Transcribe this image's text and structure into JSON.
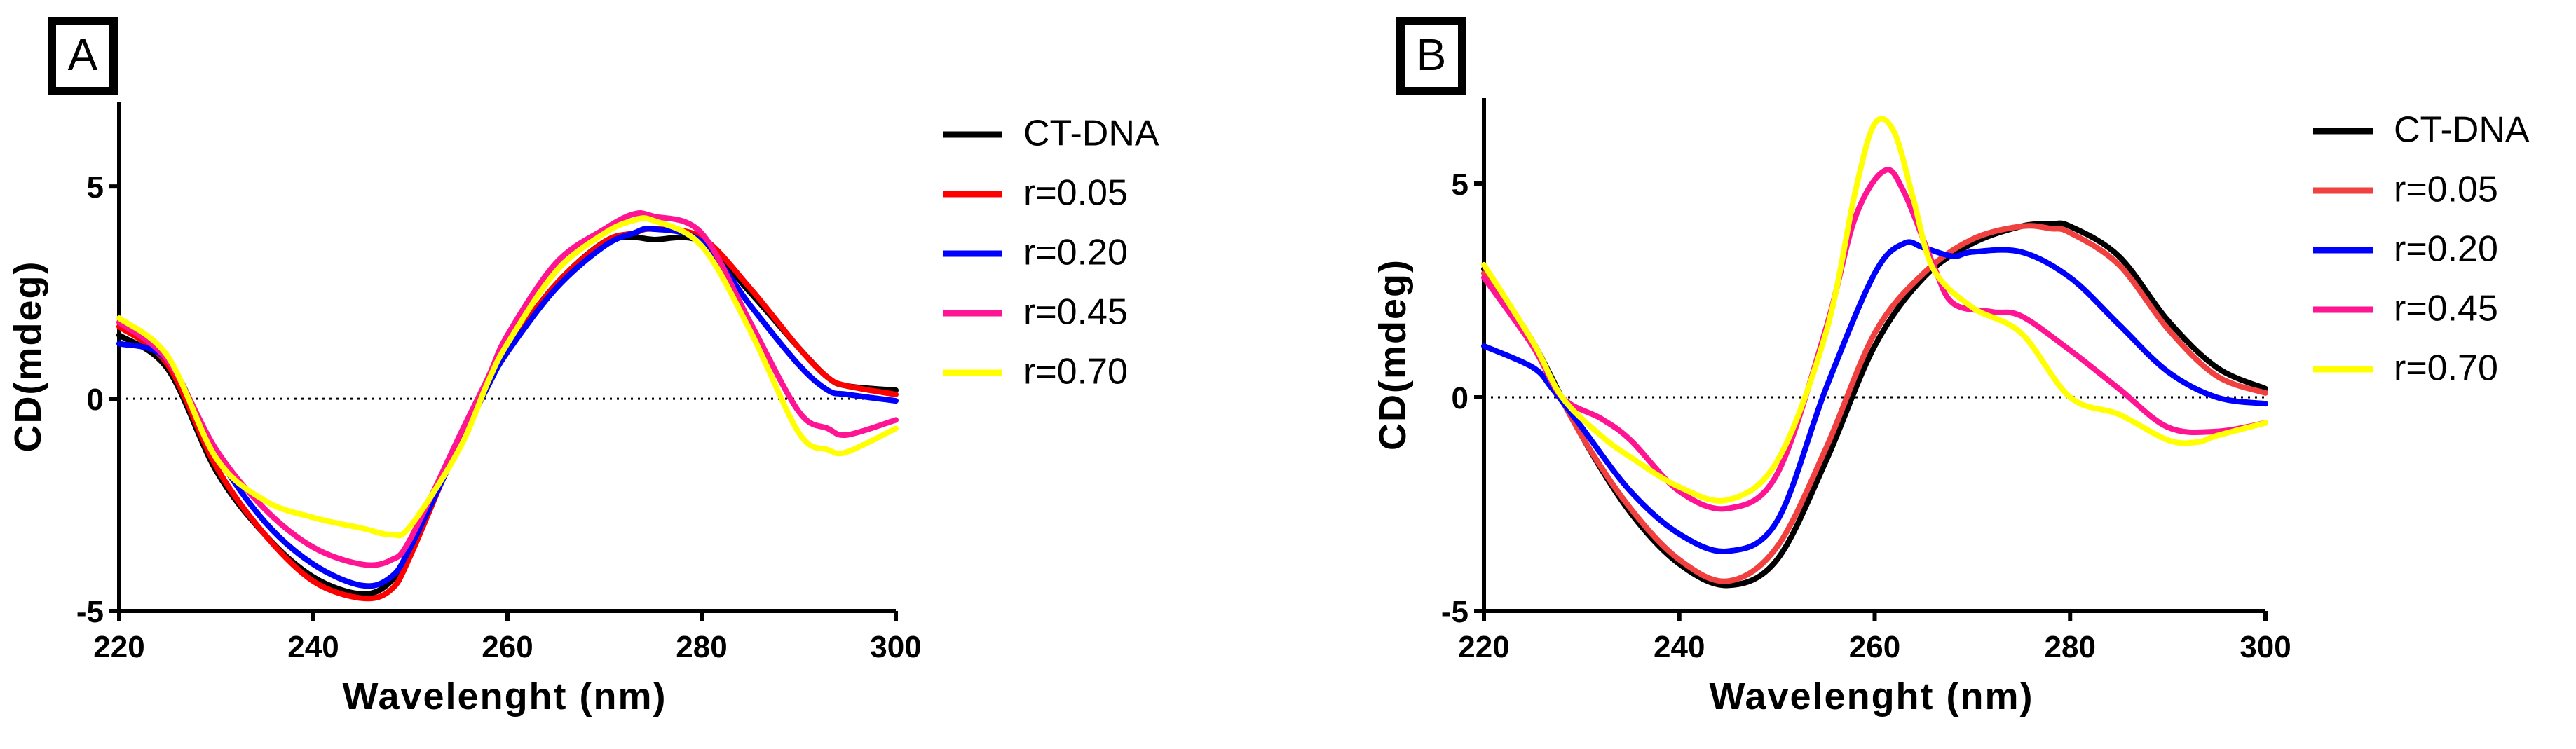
{
  "chart_data": [
    {
      "type": "line",
      "panel_label": "A",
      "xlabel": "Wavelenght (nm)",
      "ylabel": "CD(mdeg)",
      "xlim": [
        220,
        300
      ],
      "ylim": [
        -5,
        7
      ],
      "xticks": [
        "220",
        "240",
        "260",
        "280",
        "300"
      ],
      "yticks": [
        "-5",
        "0",
        "5"
      ],
      "reference_line": 0,
      "series": [
        {
          "name": "CT-DNA",
          "color": "#000000",
          "x": [
            220,
            225,
            230,
            235,
            240,
            245,
            248,
            250,
            255,
            258,
            260,
            265,
            270,
            273,
            275,
            280,
            285,
            290,
            293,
            295,
            300
          ],
          "y": [
            1.5,
            0.7,
            -1.7,
            -3.2,
            -4.2,
            -4.6,
            -4.3,
            -3.5,
            -1.0,
            0.4,
            1.2,
            2.7,
            3.7,
            3.8,
            3.75,
            3.7,
            2.5,
            1.2,
            0.5,
            0.3,
            0.2
          ]
        },
        {
          "name": "r=0.05",
          "color": "#ff0000",
          "x": [
            220,
            225,
            230,
            235,
            240,
            245,
            248,
            250,
            255,
            258,
            260,
            265,
            270,
            273,
            275,
            280,
            285,
            290,
            293,
            295,
            300
          ],
          "y": [
            1.7,
            0.8,
            -1.6,
            -3.2,
            -4.3,
            -4.7,
            -4.5,
            -3.7,
            -1.0,
            0.4,
            1.2,
            2.7,
            3.7,
            3.9,
            4.0,
            3.8,
            2.6,
            1.2,
            0.5,
            0.3,
            0.1
          ]
        },
        {
          "name": "r=0.20",
          "color": "#0000ff",
          "x": [
            220,
            225,
            230,
            235,
            240,
            245,
            248,
            250,
            255,
            258,
            260,
            265,
            270,
            273,
            275,
            280,
            285,
            290,
            293,
            295,
            300
          ],
          "y": [
            1.3,
            0.9,
            -1.3,
            -2.9,
            -3.9,
            -4.4,
            -4.2,
            -3.5,
            -1.1,
            0.3,
            1.1,
            2.6,
            3.6,
            3.9,
            4.0,
            3.7,
            2.2,
            0.8,
            0.2,
            0.1,
            -0.05
          ]
        },
        {
          "name": "r=0.45",
          "color": "#ff1493",
          "x": [
            220,
            225,
            230,
            235,
            240,
            245,
            248,
            250,
            255,
            258,
            260,
            265,
            270,
            273,
            275,
            280,
            285,
            290,
            293,
            295,
            300
          ],
          "y": [
            1.8,
            0.9,
            -1.2,
            -2.6,
            -3.5,
            -3.9,
            -3.8,
            -3.3,
            -0.9,
            0.5,
            1.5,
            3.2,
            4.0,
            4.35,
            4.3,
            3.9,
            1.8,
            -0.3,
            -0.7,
            -0.85,
            -0.5
          ]
        },
        {
          "name": "r=0.70",
          "color": "#ffff00",
          "x": [
            220,
            225,
            230,
            235,
            240,
            245,
            248,
            250,
            255,
            258,
            260,
            265,
            270,
            273,
            275,
            280,
            285,
            290,
            293,
            295,
            300
          ],
          "y": [
            1.9,
            1.0,
            -1.4,
            -2.4,
            -2.8,
            -3.05,
            -3.2,
            -3.0,
            -1.2,
            0.4,
            1.3,
            3.0,
            3.9,
            4.2,
            4.2,
            3.6,
            1.6,
            -0.8,
            -1.2,
            -1.25,
            -0.7
          ]
        }
      ]
    },
    {
      "type": "line",
      "panel_label": "B",
      "xlabel": "Wavelenght (nm)",
      "ylabel": "CD(mdeg)",
      "xlim": [
        220,
        300
      ],
      "ylim": [
        -5,
        7
      ],
      "xticks": [
        "220",
        "240",
        "260",
        "280",
        "300"
      ],
      "yticks": [
        "-5",
        "0",
        "5"
      ],
      "reference_line": 0,
      "series": [
        {
          "name": "CT-DNA",
          "color": "#000000",
          "x": [
            220,
            225,
            230,
            235,
            240,
            245,
            250,
            255,
            260,
            265,
            270,
            275,
            278,
            280,
            285,
            290,
            295,
            300
          ],
          "y": [
            3.0,
            1.3,
            -0.9,
            -2.7,
            -3.9,
            -4.4,
            -3.8,
            -1.5,
            1.2,
            2.8,
            3.6,
            4.0,
            4.05,
            4.0,
            3.3,
            1.8,
            0.7,
            0.2
          ]
        },
        {
          "name": "r=0.05",
          "color": "#f04040",
          "x": [
            220,
            225,
            230,
            235,
            240,
            245,
            250,
            255,
            260,
            265,
            270,
            275,
            278,
            280,
            285,
            290,
            295,
            300
          ],
          "y": [
            2.9,
            1.2,
            -0.9,
            -2.6,
            -3.8,
            -4.3,
            -3.5,
            -1.2,
            1.5,
            2.9,
            3.7,
            4.0,
            3.95,
            3.85,
            3.1,
            1.6,
            0.5,
            0.1
          ]
        },
        {
          "name": "r=0.20",
          "color": "#0000ff",
          "x": [
            220,
            225,
            227,
            230,
            235,
            240,
            245,
            250,
            255,
            260,
            263,
            265,
            268,
            270,
            275,
            280,
            285,
            290,
            295,
            300
          ],
          "y": [
            1.2,
            0.7,
            0.2,
            -0.7,
            -2.2,
            -3.2,
            -3.6,
            -2.9,
            0.2,
            2.9,
            3.6,
            3.5,
            3.3,
            3.4,
            3.4,
            2.8,
            1.7,
            0.6,
            0.0,
            -0.15
          ]
        },
        {
          "name": "r=0.45",
          "color": "#ff1493",
          "x": [
            220,
            225,
            228,
            232,
            235,
            240,
            245,
            250,
            255,
            258,
            261,
            263,
            266,
            268,
            272,
            275,
            280,
            285,
            290,
            295,
            300
          ],
          "y": [
            2.8,
            1.2,
            0.0,
            -0.5,
            -1.0,
            -2.2,
            -2.6,
            -1.8,
            1.6,
            4.2,
            5.3,
            4.8,
            3.1,
            2.2,
            2.0,
            1.9,
            1.1,
            0.2,
            -0.7,
            -0.8,
            -0.6
          ]
        },
        {
          "name": "r=0.70",
          "color": "#ffff00",
          "x": [
            220,
            225,
            228,
            232,
            235,
            240,
            245,
            250,
            255,
            258,
            260,
            262,
            264,
            266,
            270,
            275,
            280,
            285,
            290,
            293,
            295,
            300
          ],
          "y": [
            3.1,
            1.3,
            0.0,
            -0.9,
            -1.4,
            -2.1,
            -2.4,
            -1.5,
            1.5,
            4.8,
            6.4,
            6.2,
            4.6,
            3.0,
            2.1,
            1.5,
            0.0,
            -0.4,
            -1.0,
            -1.05,
            -0.9,
            -0.6
          ]
        }
      ]
    }
  ]
}
